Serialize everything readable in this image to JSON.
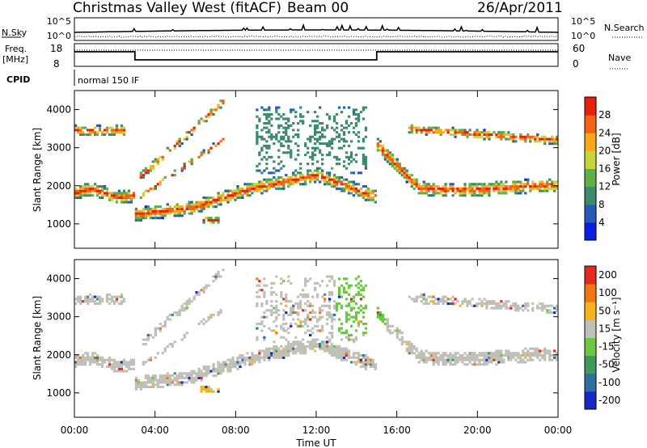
{
  "header": {
    "title": "Christmas Valley West (fitACF)",
    "beam": "Beam 00",
    "date": "26/Apr/2011"
  },
  "top_panels": {
    "nsky_label": "N.Sky",
    "nsky_ticks": [
      "10^5",
      "10^0"
    ],
    "nsky_right_ticks": [
      "10^5",
      "10^0"
    ],
    "nsearch_label": "N.Search",
    "freq_label_1": "Freq.",
    "freq_label_2": "[MHz]",
    "freq_ticks": [
      "18",
      "8"
    ],
    "nave_label": "Nave",
    "nave_ticks": [
      "60",
      "0"
    ],
    "cpid_label": "CPID",
    "cpid_text": "normal 150 IF"
  },
  "chart_data": [
    {
      "type": "heatmap",
      "title": "",
      "quantity": "Power",
      "xlabel": "",
      "ylabel": "Slant Range [km]",
      "x_ticks": [
        "00:00",
        "04:00",
        "08:00",
        "12:00",
        "16:00",
        "20:00",
        "00:00"
      ],
      "x_hours": [
        0,
        4,
        8,
        12,
        16,
        20,
        24
      ],
      "xlim": [
        0,
        24
      ],
      "y_ticks": [
        1000,
        2000,
        3000,
        4000
      ],
      "ylim": [
        360,
        4500
      ],
      "colorbar_label": "Power [dB]",
      "colorbar_ticks": [
        "4",
        "8",
        "12",
        "16",
        "20",
        "24",
        "28"
      ],
      "colorbar_colors": [
        "#0a1ee6",
        "#2a5ab8",
        "#3d8a6e",
        "#5fb04a",
        "#c9d43a",
        "#f7a81c",
        "#f06414",
        "#e81e10"
      ]
    },
    {
      "type": "heatmap",
      "title": "",
      "quantity": "Velocity",
      "xlabel": "Time UT",
      "ylabel": "Slant Range [km]",
      "x_ticks": [
        "00:00",
        "04:00",
        "08:00",
        "12:00",
        "16:00",
        "20:00",
        "00:00"
      ],
      "x_hours": [
        0,
        4,
        8,
        12,
        16,
        20,
        24
      ],
      "xlim": [
        0,
        24
      ],
      "y_ticks": [
        1000,
        2000,
        3000,
        4000
      ],
      "ylim": [
        360,
        4500
      ],
      "colorbar_label": "Velocity [m s⁻¹]",
      "colorbar_ticks": [
        "200",
        "100",
        "50",
        "15",
        "-15",
        "-50",
        "-100",
        "-200"
      ],
      "colorbar_colors": [
        "#1428c8",
        "#2e6ea0",
        "#3e9a5a",
        "#6cc840",
        "#c0c0b8",
        "#f5b41e",
        "#f07814",
        "#e8281e"
      ]
    }
  ]
}
